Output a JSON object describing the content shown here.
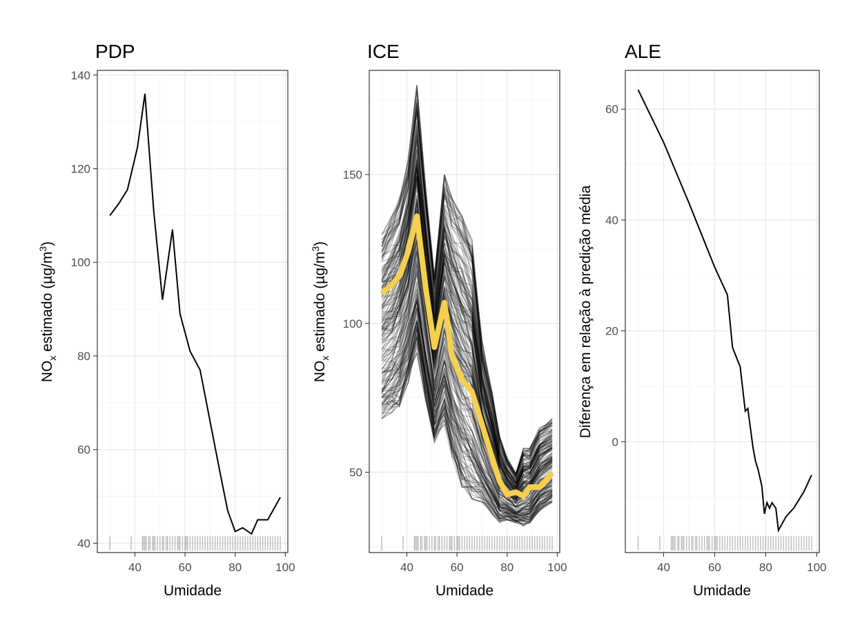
{
  "chart_data": [
    {
      "type": "line",
      "title": "PDP",
      "xlabel": "Umidade",
      "ylabel_main": "NO",
      "ylabel_sub": "x",
      "ylabel_mid": " estimado (µg/m",
      "ylabel_sup": "3",
      "ylabel_end": ")",
      "xlim": [
        25,
        101
      ],
      "ylim": [
        38,
        141
      ],
      "xticks": [
        40,
        60,
        80,
        100
      ],
      "yticks": [
        40,
        60,
        80,
        100,
        120,
        140
      ],
      "series": [
        {
          "x": [
            30,
            33.5,
            37,
            41,
            44,
            47.5,
            51,
            55,
            58,
            62,
            66,
            70,
            74,
            77,
            80,
            83,
            86.5,
            89,
            93,
            98
          ],
          "y": [
            110,
            112.5,
            115.5,
            124.5,
            136,
            111,
            92,
            107,
            89,
            81,
            77,
            66,
            55,
            47,
            42.5,
            43.3,
            42,
            45,
            45,
            49.8
          ]
        }
      ],
      "rug_x": [
        30,
        38.5,
        43,
        43.5,
        44,
        44.5,
        45.5,
        46,
        47,
        47.5,
        48,
        49,
        50,
        51,
        51.5,
        52.5,
        53,
        54,
        55,
        56,
        57,
        57.5,
        58,
        59,
        60,
        60.5,
        61,
        62,
        63,
        64,
        65,
        66,
        67,
        68,
        69,
        70,
        71,
        72,
        73,
        74,
        75,
        76,
        77,
        78,
        79,
        80,
        81,
        82,
        83,
        84,
        85,
        86,
        87,
        88,
        89,
        90,
        91,
        92,
        93,
        94,
        95,
        96,
        97,
        98
      ]
    },
    {
      "type": "line",
      "title": "ICE",
      "xlabel": "Umidade",
      "ylabel_main": "NO",
      "ylabel_sub": "x",
      "ylabel_mid": " estimado (µg/m",
      "ylabel_sup": "3",
      "ylabel_end": ")",
      "xlim": [
        25,
        101
      ],
      "ylim": [
        23,
        185
      ],
      "xticks": [
        40,
        60,
        80,
        100
      ],
      "yticks": [
        50,
        100,
        150
      ],
      "colors": {
        "ice_lines": "#000000",
        "pdp_line": "#f6d04d"
      },
      "ice_count": 200,
      "ice_x": [
        30,
        34,
        37,
        40.5,
        44,
        47.5,
        51,
        55,
        58,
        62,
        66,
        70,
        74,
        77,
        80,
        83.5,
        86.5,
        89,
        93,
        98
      ],
      "ice_upper": [
        130,
        136,
        142,
        155,
        180,
        146,
        116,
        150,
        142,
        136,
        128,
        94,
        77,
        62,
        55,
        50,
        58,
        58,
        65,
        68
      ],
      "ice_lower": [
        68,
        70,
        72,
        80,
        90,
        74,
        60,
        66,
        55,
        45,
        41,
        40,
        36,
        33,
        34,
        33,
        32,
        33,
        37,
        40
      ],
      "series": [
        {
          "x": [
            30,
            34,
            37,
            40.5,
            44,
            47.5,
            51,
            55,
            58,
            62,
            66,
            70,
            74,
            77,
            80,
            83.5,
            86.5,
            89,
            93,
            98
          ],
          "y": [
            110,
            113,
            116,
            124,
            136,
            112,
            92,
            107,
            89,
            81,
            77,
            66,
            55,
            47,
            42.5,
            43.3,
            42,
            45,
            45,
            49.8
          ]
        }
      ],
      "rug_x": [
        30,
        38.5,
        43,
        43.5,
        44,
        44.5,
        45.5,
        46,
        47,
        47.5,
        48,
        49,
        50,
        51,
        51.5,
        52.5,
        53,
        54,
        55,
        56,
        57,
        57.5,
        58,
        59,
        60,
        60.5,
        61,
        62,
        63,
        64,
        65,
        66,
        67,
        68,
        69,
        70,
        71,
        72,
        73,
        74,
        75,
        76,
        77,
        78,
        79,
        80,
        81,
        82,
        83,
        84,
        85,
        86,
        87,
        88,
        89,
        90,
        91,
        92,
        93,
        94,
        95,
        96,
        97,
        98
      ]
    },
    {
      "type": "line",
      "title": "ALE",
      "xlabel": "Umidade",
      "ylabel": "Diferença em relação à predição média",
      "xlim": [
        25,
        101
      ],
      "ylim": [
        -20,
        67
      ],
      "xticks": [
        40,
        60,
        80,
        100
      ],
      "yticks": [
        0,
        20,
        40,
        60
      ],
      "series": [
        {
          "x": [
            30,
            40,
            50,
            60,
            65,
            67,
            70,
            72,
            73,
            75,
            76,
            77,
            78.5,
            79.5,
            80.5,
            81.5,
            82.5,
            84,
            85,
            88,
            91,
            95,
            98
          ],
          "y": [
            63.5,
            54,
            43,
            31.5,
            26.5,
            17,
            13.5,
            5.5,
            6,
            -1,
            -3.5,
            -5,
            -8,
            -13,
            -11,
            -12,
            -11,
            -12,
            -16,
            -13.5,
            -12,
            -9,
            -6
          ]
        }
      ],
      "rug_x": [
        30,
        38.5,
        43,
        43.5,
        44,
        44.5,
        45.5,
        46,
        47,
        47.5,
        48,
        49,
        50,
        51,
        51.5,
        52.5,
        53,
        54,
        55,
        56,
        57,
        57.5,
        58,
        59,
        60,
        60.5,
        61,
        62,
        63,
        64,
        65,
        66,
        67,
        68,
        69,
        70,
        71,
        72,
        73,
        74,
        75,
        76,
        77,
        78,
        79,
        80,
        81,
        82,
        83,
        84,
        85,
        86,
        87,
        88,
        89,
        90,
        91,
        92,
        93,
        94,
        95,
        96,
        97,
        98
      ]
    }
  ]
}
